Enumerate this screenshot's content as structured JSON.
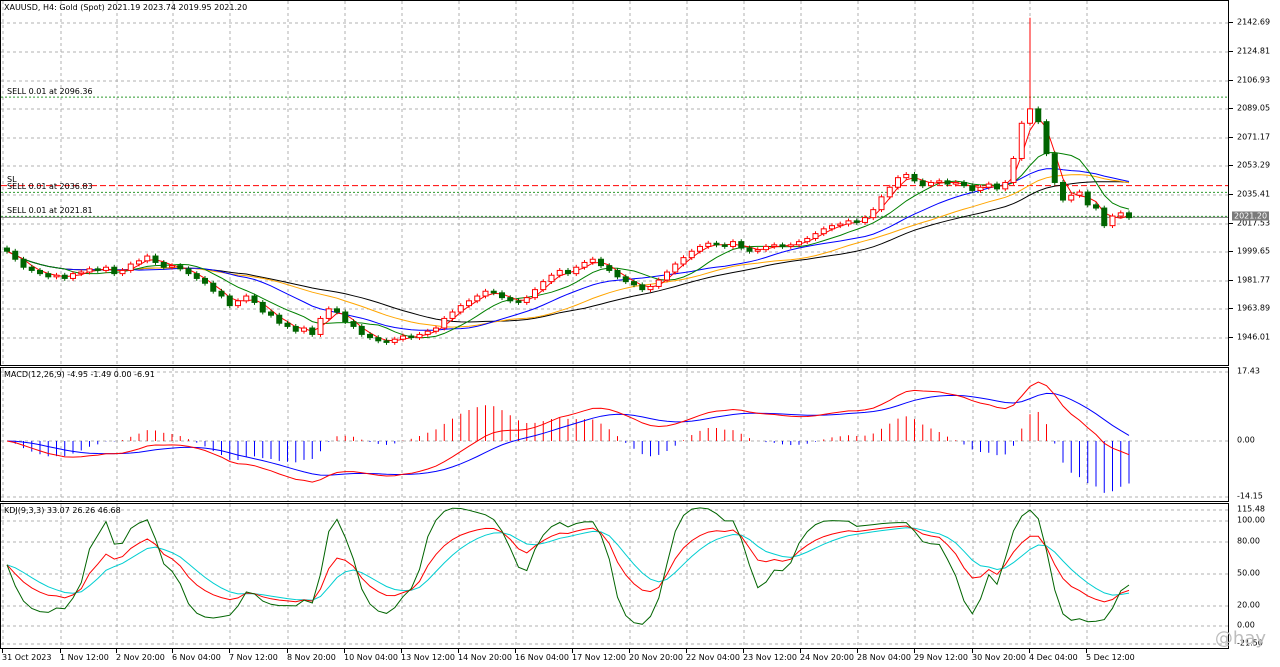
{
  "header": {
    "info": "XAUUSD, H4:  Gold (Spot)  2021.19 2023.74 2019.95 2021.20"
  },
  "price_axis": {
    "labels": [
      "2142.69",
      "2124.81",
      "2106.93",
      "2089.05",
      "2071.17",
      "2053.29",
      "2035.41",
      "2017.53",
      "1999.65",
      "1981.77",
      "1963.89",
      "1946.01"
    ],
    "current_price": "2021.20"
  },
  "orders": {
    "sl_label": "SL",
    "sell1": "SELL 0.01 at 2096.36",
    "sell2": "SELL 0.01 at 2036.83",
    "sell3": "SELL 0.01 at 2021.81"
  },
  "macd": {
    "label": "MACD(12,26,9) -4.95 -1.49 0.00 -6.91",
    "axis": [
      "17.43",
      "0.00",
      "-14.15"
    ]
  },
  "kdj": {
    "label": "KDJ(9,3,3) 33.07 26.26 46.68",
    "axis": [
      "115.48",
      "100.00",
      "80.00",
      "50.00",
      "20.00",
      "0.00",
      "-21.50"
    ]
  },
  "time_axis": [
    "31 Oct 2023",
    "1 Nov 12:00",
    "2 Nov 20:00",
    "6 Nov 04:00",
    "7 Nov 12:00",
    "8 Nov 20:00",
    "10 Nov 04:00",
    "13 Nov 12:00",
    "14 Nov 20:00",
    "16 Nov 04:00",
    "17 Nov 12:00",
    "20 Nov 20:00",
    "22 Nov 04:00",
    "23 Nov 12:00",
    "24 Nov 20:00",
    "28 Nov 04:00",
    "29 Nov 12:00",
    "30 Nov 20:00",
    "4 Dec 04:00",
    "5 Dec 12:00"
  ],
  "watermark": "@hay",
  "colors": {
    "bull": "#ff0000",
    "bear": "#006400",
    "ma_fast": "#ff0000",
    "ma_green": "#008000",
    "ma_blue": "#0000ff",
    "ma_orange": "#ffa500",
    "ma_black": "#000000",
    "macd_line": "#ff0000",
    "macd_signal": "#0000ff",
    "kdj_k": "#ff0000",
    "kdj_d": "#00ced1",
    "kdj_j": "#006400"
  },
  "chart_data": [
    {
      "type": "candlestick",
      "title": "XAUUSD, H4:  Gold (Spot)",
      "ylim": [
        1938,
        2150
      ],
      "grid": true,
      "levels": [
        2096.36,
        2036.83,
        2021.81,
        2041.0
      ],
      "current": 2021.2,
      "closes": [
        2000,
        1995,
        1990,
        1988,
        1986,
        1984,
        1985,
        1983,
        1986,
        1987,
        1989,
        1988,
        1990,
        1986,
        1988,
        1992,
        1994,
        1997,
        1993,
        1990,
        1991,
        1989,
        1986,
        1983,
        1980,
        1975,
        1972,
        1966,
        1969,
        1972,
        1968,
        1962,
        1960,
        1955,
        1953,
        1950,
        1952,
        1948,
        1958,
        1964,
        1962,
        1956,
        1953,
        1948,
        1946,
        1944,
        1943,
        1945,
        1947,
        1946,
        1948,
        1950,
        1952,
        1958,
        1962,
        1966,
        1969,
        1972,
        1975,
        1974,
        1971,
        1969,
        1968,
        1971,
        1976,
        1981,
        1985,
        1988,
        1986,
        1990,
        1993,
        1995,
        1991,
        1988,
        1984,
        1981,
        1979,
        1976,
        1978,
        1982,
        1987,
        1992,
        1996,
        2000,
        2003,
        2005,
        2004,
        2003,
        2006,
        2002,
        2000,
        2001,
        2003,
        2004,
        2003,
        2004,
        2006,
        2008,
        2011,
        2014,
        2016,
        2017,
        2019,
        2018,
        2021,
        2026,
        2034,
        2040,
        2046,
        2048,
        2044,
        2041,
        2043,
        2044,
        2042,
        2043,
        2041,
        2038,
        2040,
        2042,
        2039,
        2043,
        2058,
        2080,
        2089,
        2081,
        2061,
        2043,
        2032,
        2035,
        2037,
        2029,
        2027,
        2016,
        2022,
        2024,
        2021
      ]
    },
    {
      "type": "bar+line",
      "title": "MACD(12,26,9)",
      "ylim": [
        -14.15,
        17.43
      ],
      "values": [
        -4.95,
        -1.49,
        0.0,
        -6.91
      ]
    },
    {
      "type": "line",
      "title": "KDJ(9,3,3)",
      "ylim": [
        -21.5,
        115.48
      ],
      "values": [
        33.07,
        26.26,
        46.68
      ]
    }
  ]
}
